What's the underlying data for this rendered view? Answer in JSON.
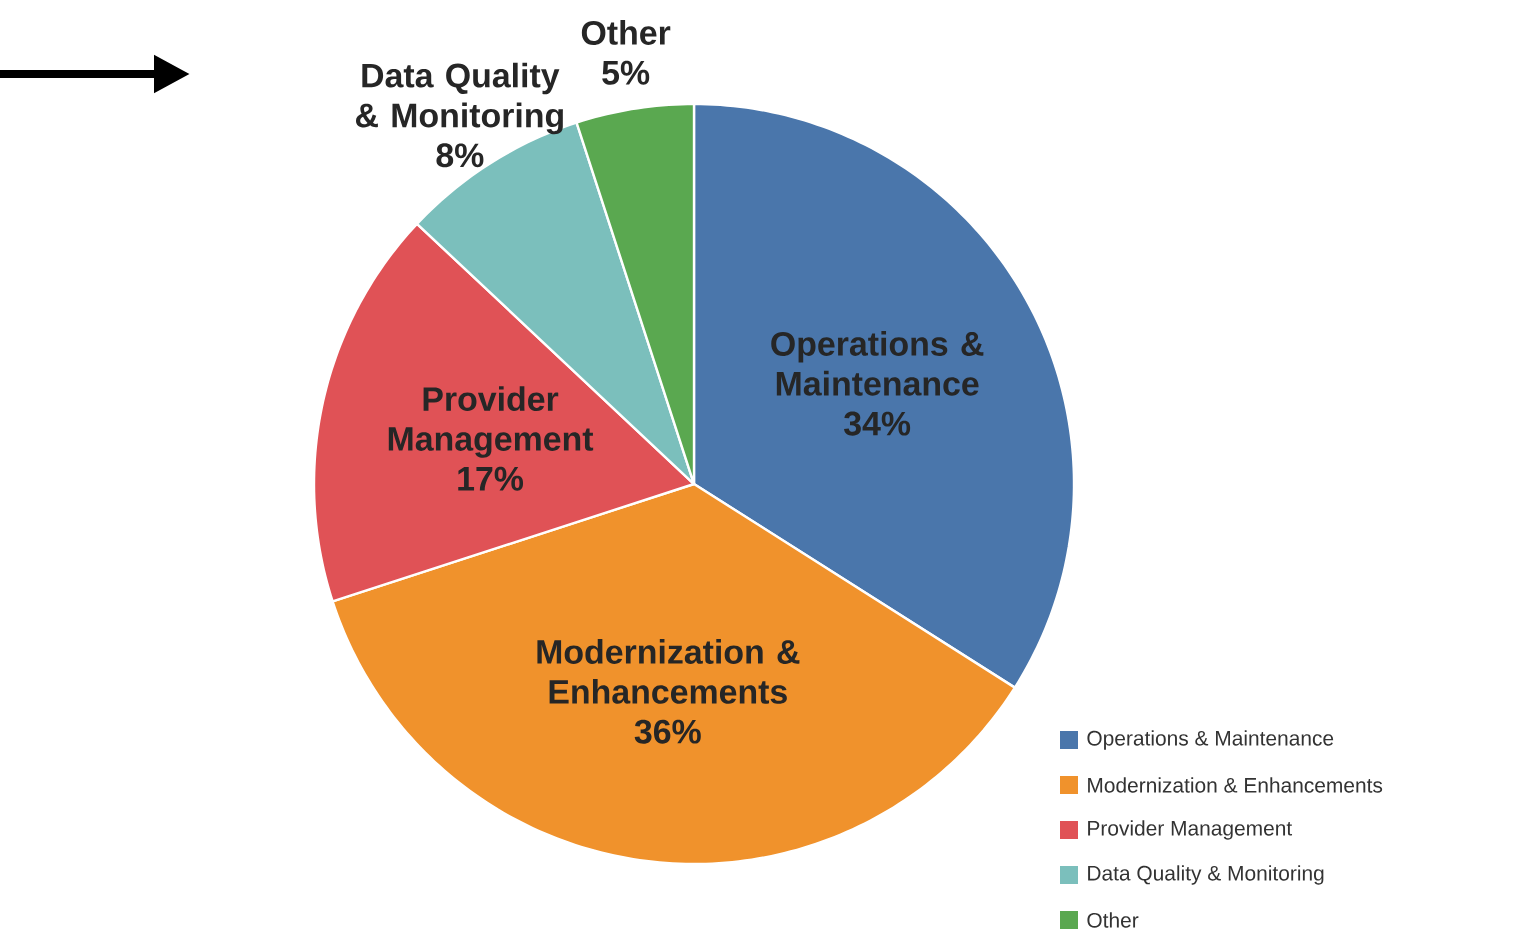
{
  "chart_data": {
    "type": "pie",
    "categories": [
      "Operations & Maintenance",
      "Modernization & Enhancements",
      "Provider Management",
      "Data Quality & Monitoring",
      "Other"
    ],
    "values": [
      34,
      36,
      17,
      8,
      5
    ],
    "colors": [
      "#4a76ab",
      "#f0922c",
      "#e05256",
      "#7bbfbc",
      "#5aa850"
    ],
    "value_labels": [
      "34%",
      "36%",
      "17%",
      "8%",
      "5%"
    ],
    "legend": "bottom right"
  }
}
